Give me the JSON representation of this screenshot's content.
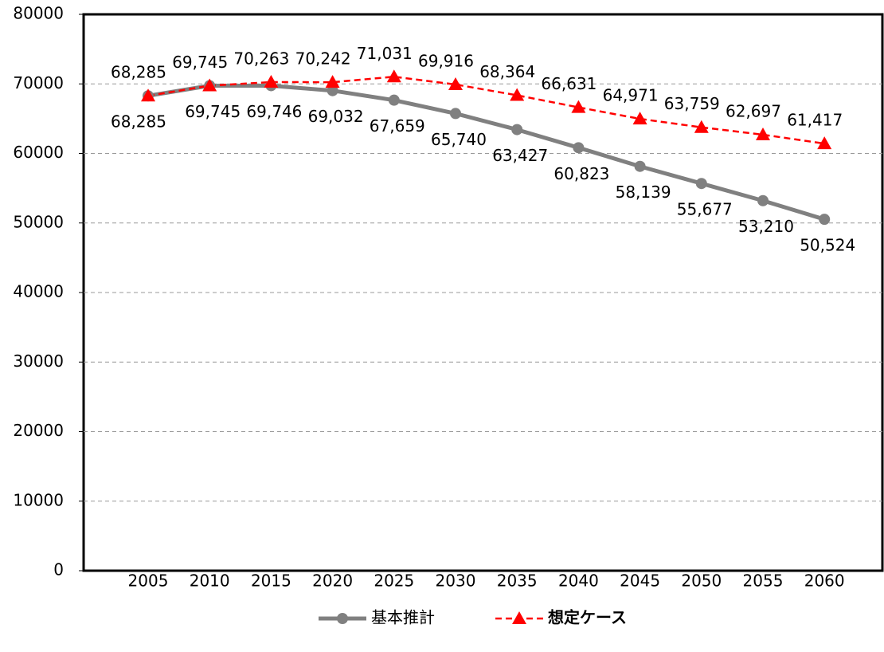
{
  "chart_data": {
    "type": "line",
    "categories": [
      "2005",
      "2010",
      "2015",
      "2020",
      "2025",
      "2030",
      "2035",
      "2040",
      "2045",
      "2050",
      "2055",
      "2060"
    ],
    "series": [
      {
        "name": "基本推計",
        "color": "#808080",
        "marker": "circle",
        "dash": false,
        "values": [
          68285,
          69745,
          69746,
          69032,
          67659,
          65740,
          63427,
          60823,
          58139,
          55677,
          53210,
          50524
        ],
        "value_labels": [
          "68,285",
          "69,745",
          "69,746",
          "69,032",
          "67,659",
          "65,740",
          "63,427",
          "60,823",
          "58,139",
          "55,677",
          "53,210",
          "50,524"
        ]
      },
      {
        "name": "想定ケース",
        "color": "#ff0000",
        "marker": "triangle",
        "dash": true,
        "values": [
          68285,
          69745,
          70263,
          70242,
          71031,
          69916,
          68364,
          66631,
          64971,
          63759,
          62697,
          61417
        ],
        "value_labels": [
          "68,285",
          "69,745",
          "70,263",
          "70,242",
          "71,031",
          "69,916",
          "68,364",
          "66,631",
          "64,971",
          "63,759",
          "62,697",
          "61,417"
        ]
      }
    ],
    "ylim": [
      0,
      80000
    ],
    "yticks": [
      0,
      10000,
      20000,
      30000,
      40000,
      50000,
      60000,
      70000,
      80000
    ],
    "grid": true,
    "legend": "bottom"
  }
}
